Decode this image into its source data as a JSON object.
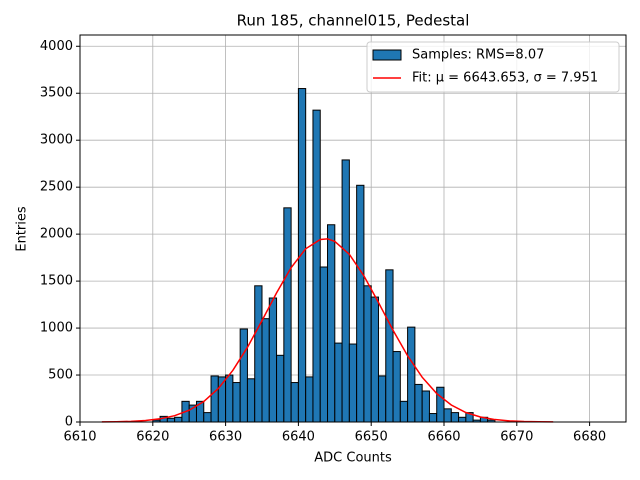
{
  "chart_data": {
    "type": "histogram",
    "title": "Run 185, channel015, Pedestal",
    "x_label": "ADC Counts",
    "y_label": "Entries",
    "xlim": [
      6610,
      6685
    ],
    "ylim": [
      0,
      4120
    ],
    "xticks": [
      6610,
      6620,
      6630,
      6640,
      6650,
      6660,
      6670,
      6680
    ],
    "yticks": [
      0,
      500,
      1000,
      1500,
      2000,
      2500,
      3000,
      3500,
      4000
    ],
    "grid": true,
    "legend": "upper right",
    "series": [
      {
        "name": "Samples: RMS=8.07",
        "type": "histogram",
        "color": "#1f77b4",
        "bins": [
          6620,
          6621,
          6622,
          6623,
          6624,
          6625,
          6626,
          6627,
          6628,
          6629,
          6630,
          6631,
          6632,
          6633,
          6634,
          6635,
          6636,
          6637,
          6638,
          6639,
          6640,
          6641,
          6642,
          6643,
          6644,
          6645,
          6646,
          6647,
          6648,
          6649,
          6650,
          6651,
          6652,
          6653,
          6654,
          6655,
          6656,
          6657,
          6658,
          6659,
          6660,
          6661,
          6662,
          6663,
          6664,
          6665,
          6666,
          6667
        ],
        "values": [
          20,
          60,
          40,
          50,
          220,
          180,
          220,
          100,
          490,
          480,
          500,
          420,
          990,
          460,
          1450,
          1100,
          1320,
          710,
          2280,
          420,
          3550,
          480,
          3320,
          1650,
          2100,
          840,
          2790,
          830,
          2520,
          1450,
          1330,
          490,
          1620,
          750,
          220,
          1010,
          400,
          330,
          90,
          370,
          140,
          100,
          50,
          100,
          20,
          50,
          20
        ]
      },
      {
        "name": "Fit: μ = 6643.653, σ = 7.951",
        "type": "line",
        "color": "#ff0000",
        "x": [
          6613,
          6615,
          6617,
          6619,
          6621,
          6623,
          6625,
          6627,
          6629,
          6631,
          6633,
          6635,
          6637,
          6639,
          6641,
          6643,
          6644,
          6645,
          6647,
          6649,
          6651,
          6653,
          6655,
          6657,
          6659,
          6661,
          6663,
          6665,
          6667,
          6669,
          6671,
          6673,
          6675
        ],
        "values": [
          1,
          3,
          7,
          16,
          34,
          67,
          125,
          218,
          357,
          550,
          795,
          1079,
          1375,
          1643,
          1844,
          1943,
          1950,
          1922,
          1785,
          1556,
          1272,
          977,
          705,
          477,
          303,
          181,
          101,
          53,
          26,
          12,
          5,
          2,
          1
        ]
      }
    ]
  }
}
